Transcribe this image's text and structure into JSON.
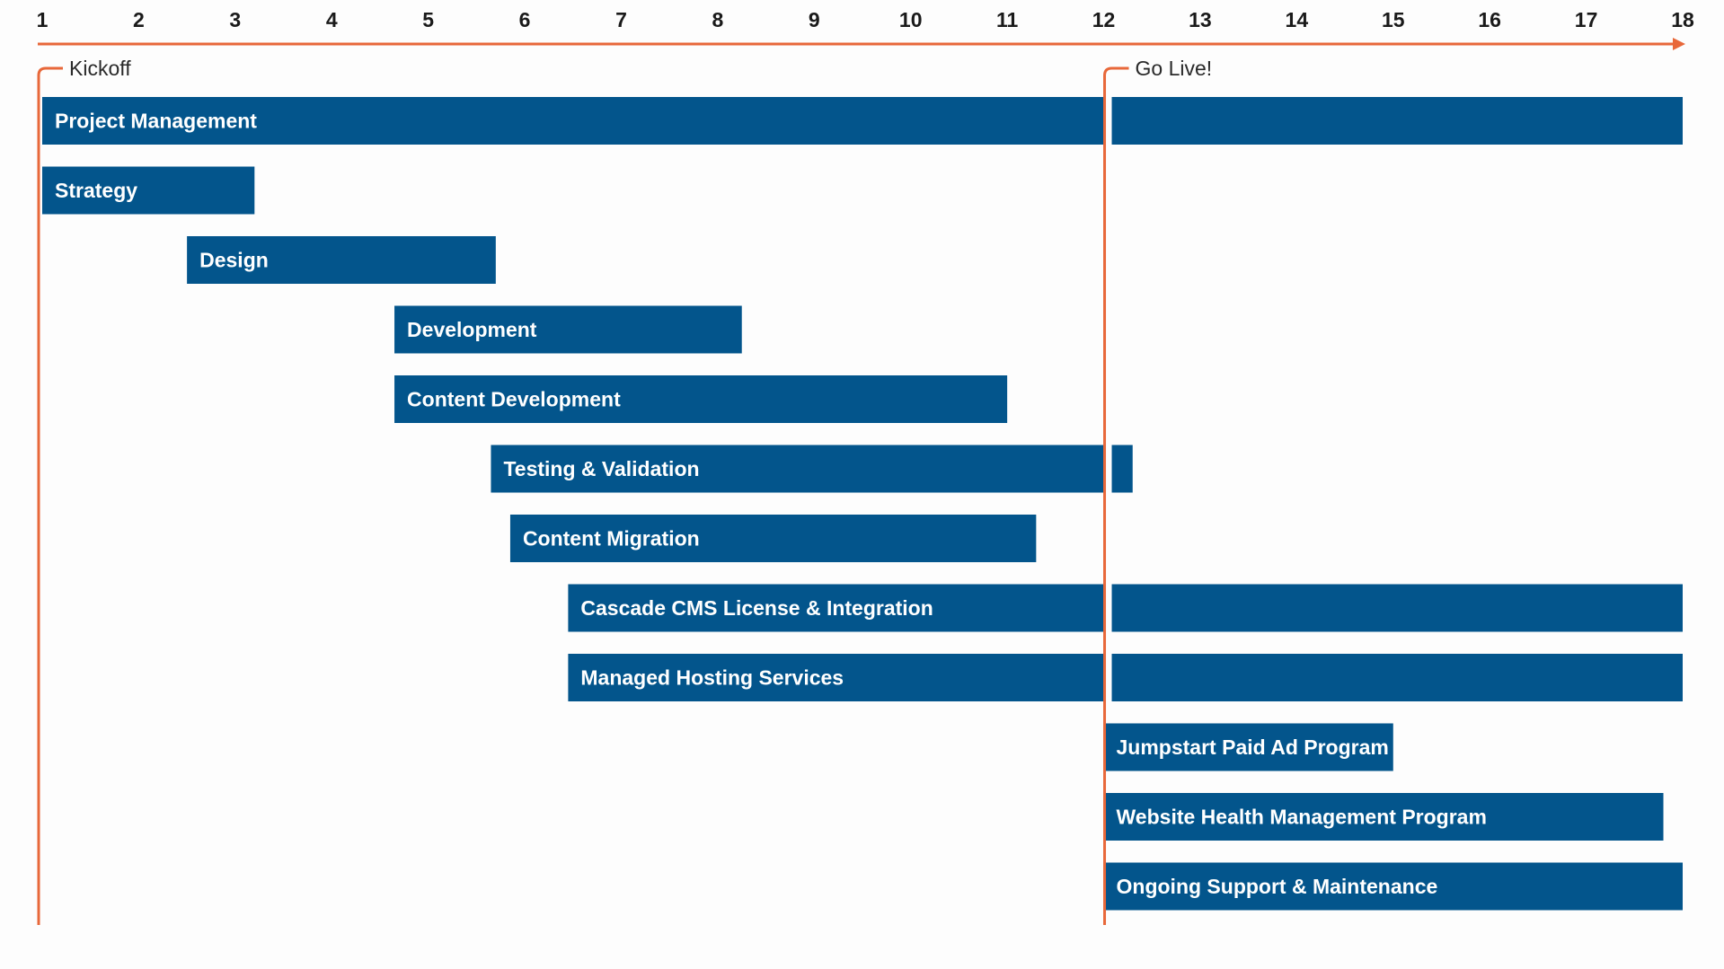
{
  "chart_data": {
    "type": "gantt",
    "title": "",
    "xlabel": "",
    "ylabel": "",
    "x_ticks": [
      "1",
      "2",
      "3",
      "4",
      "5",
      "6",
      "7",
      "8",
      "9",
      "10",
      "11",
      "12",
      "13",
      "14",
      "15",
      "16",
      "17",
      "18"
    ],
    "xlim": [
      1,
      18
    ],
    "grid": false,
    "colors": {
      "bar": "#03558c",
      "axis": "#e8683a",
      "milestone": "#e8683a",
      "tick_text": "#1a1a1a",
      "bar_text": "#ffffff"
    },
    "milestones": [
      {
        "label": "Kickoff",
        "x": 1
      },
      {
        "label": "Go Live!",
        "x": 12
      }
    ],
    "tasks": [
      {
        "name": "Project Management",
        "start": 1,
        "end": 18
      },
      {
        "name": "Strategy",
        "start": 1,
        "end": 3.2
      },
      {
        "name": "Design",
        "start": 2.5,
        "end": 5.7
      },
      {
        "name": "Development",
        "start": 4.65,
        "end": 8.25
      },
      {
        "name": "Content Development",
        "start": 4.65,
        "end": 11
      },
      {
        "name": "Testing & Validation",
        "start": 5.65,
        "end": 12.3
      },
      {
        "name": "Content Migration",
        "start": 5.85,
        "end": 11.3
      },
      {
        "name": "Cascade CMS License & Integration",
        "start": 6.45,
        "end": 18
      },
      {
        "name": "Managed Hosting Services",
        "start": 6.45,
        "end": 18
      },
      {
        "name": "Jumpstart Paid Ad Program",
        "start": 12,
        "end": 15
      },
      {
        "name": "Website Health Management Program",
        "start": 12,
        "end": 17.8
      },
      {
        "name": "Ongoing Support & Maintenance",
        "start": 12,
        "end": 18
      }
    ]
  }
}
